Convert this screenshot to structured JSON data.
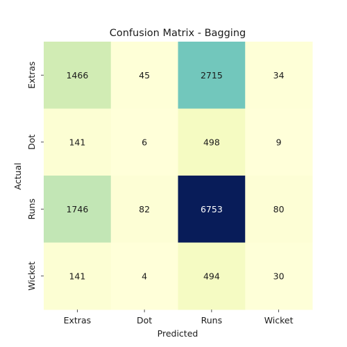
{
  "chart_data": {
    "type": "heatmap",
    "title": "Confusion Matrix - Bagging",
    "xlabel": "Predicted",
    "ylabel": "Actual",
    "x_categories": [
      "Extras",
      "Dot",
      "Runs",
      "Wicket"
    ],
    "y_categories": [
      "Extras",
      "Dot",
      "Runs",
      "Wicket"
    ],
    "values": [
      [
        1466,
        45,
        2715,
        34
      ],
      [
        141,
        6,
        498,
        9
      ],
      [
        1746,
        82,
        6753,
        80
      ],
      [
        141,
        4,
        494,
        30
      ]
    ],
    "colormap": "YlGnBu",
    "color_range": [
      4,
      6753
    ],
    "colorbar": false,
    "grid": false
  }
}
